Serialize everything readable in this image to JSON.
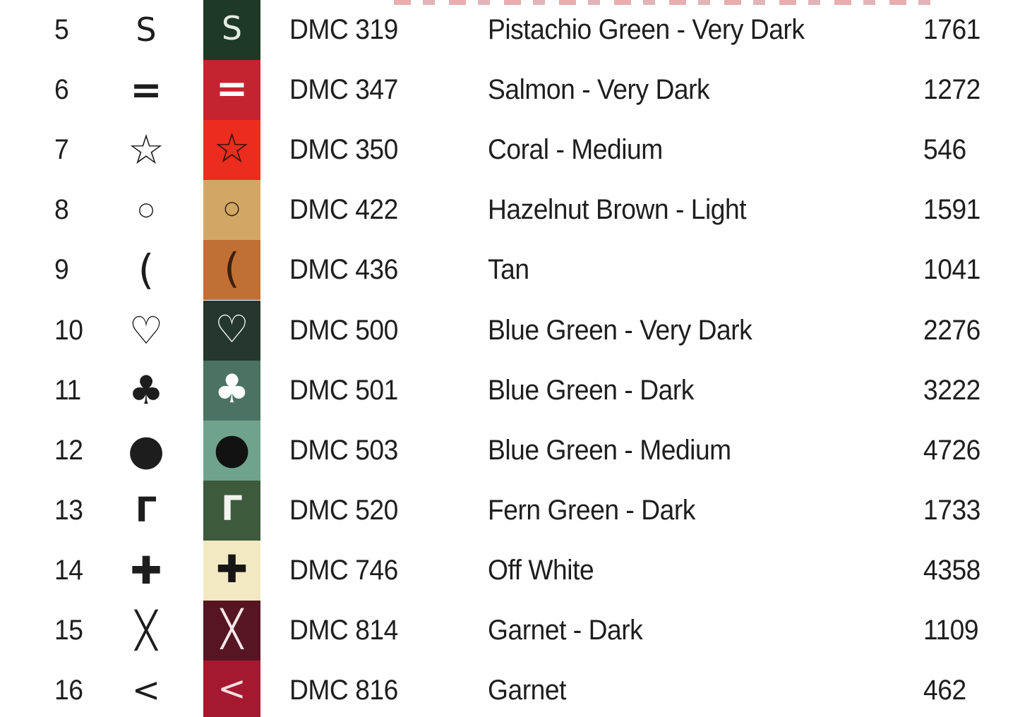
{
  "page": {
    "background_color": "#ffffff",
    "text_color": "#1e1e1e",
    "symbol_color": "#1d1d1d"
  },
  "legend": {
    "columns": [
      "number",
      "symbol",
      "swatch",
      "dmc_code",
      "color_name",
      "stitch_count"
    ],
    "rows": [
      {
        "number": "5",
        "symbol": "S",
        "dmc": "DMC 319",
        "name": "Pistachio Green - Very Dark",
        "count": "1761",
        "swatch_color": "#1e3a26",
        "swatch_symbol_color": "#e6ece2"
      },
      {
        "number": "6",
        "symbol": "=",
        "dmc": "DMC 347",
        "name": "Salmon - Very Dark",
        "count": "1272",
        "swatch_color": "#c32430",
        "swatch_symbol_color": "#ffffff"
      },
      {
        "number": "7",
        "symbol": "☆",
        "dmc": "DMC 350",
        "name": "Coral - Medium",
        "count": "546",
        "swatch_color": "#ec2c1e",
        "swatch_symbol_color": "#2a120c"
      },
      {
        "number": "8",
        "symbol": "○",
        "dmc": "DMC 422",
        "name": "Hazelnut Brown - Light",
        "count": "1591",
        "swatch_color": "#d2a765",
        "swatch_symbol_color": "#2b1d10"
      },
      {
        "number": "9",
        "symbol": "(",
        "dmc": "DMC 436",
        "name": "Tan",
        "count": "1041",
        "swatch_color": "#c06f35",
        "swatch_symbol_color": "#3c200d"
      },
      {
        "number": "10",
        "symbol": "♡",
        "dmc": "DMC 500",
        "name": "Blue Green - Very Dark",
        "count": "2276",
        "swatch_color": "#25372e",
        "swatch_symbol_color": "#f4f7f2"
      },
      {
        "number": "11",
        "symbol": "♣",
        "dmc": "DMC 501",
        "name": "Blue Green - Dark",
        "count": "3222",
        "swatch_color": "#4b7263",
        "swatch_symbol_color": "#ffffff"
      },
      {
        "number": "12",
        "symbol": "●",
        "dmc": "DMC 503",
        "name": "Blue Green - Medium",
        "count": "4726",
        "swatch_color": "#6fa38e",
        "swatch_symbol_color": "#121212"
      },
      {
        "number": "13",
        "symbol": "Γ",
        "dmc": "DMC 520",
        "name": "Fern Green - Dark",
        "count": "1733",
        "swatch_color": "#3d5a3d",
        "swatch_symbol_color": "#f2f4ee"
      },
      {
        "number": "14",
        "symbol": "✚",
        "dmc": "DMC 746",
        "name": "Off White",
        "count": "4358",
        "swatch_color": "#f2e9c3",
        "swatch_symbol_color": "#161616"
      },
      {
        "number": "15",
        "symbol": "╳",
        "dmc": "DMC 814",
        "name": "Garnet - Dark",
        "count": "1109",
        "swatch_color": "#571523",
        "swatch_symbol_color": "#f6e9ea"
      },
      {
        "number": "16",
        "symbol": "<",
        "dmc": "DMC 816",
        "name": "Garnet",
        "count": "462",
        "swatch_color": "#a51930",
        "swatch_symbol_color": "#f3dfe0"
      }
    ]
  }
}
